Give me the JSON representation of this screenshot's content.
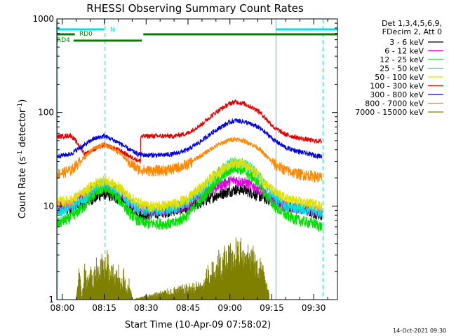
{
  "chart_data": {
    "type": "line",
    "title": "RHESSI Observing Summary Count Rates",
    "xlabel": "Start Time (10-Apr-09 07:58:02)",
    "ylabel_main": "Count Rate (s",
    "ylabel_sup1": "-1",
    "ylabel_mid": " detector",
    "ylabel_sup2": "-1",
    "ylabel_end": ")",
    "yscale": "log",
    "ylim": [
      1,
      1000
    ],
    "xlim_minutes": [
      478.03,
      578.5
    ],
    "x_ticks": [
      {
        "label": "08:00",
        "min": 480
      },
      {
        "label": "08:15",
        "min": 495
      },
      {
        "label": "08:30",
        "min": 510
      },
      {
        "label": "08:45",
        "min": 525
      },
      {
        "label": "09:00",
        "min": 540
      },
      {
        "label": "09:15",
        "min": 555
      },
      {
        "label": "09:30",
        "min": 570
      }
    ],
    "y_ticks": [
      {
        "label": "1",
        "value": 1
      },
      {
        "label": "10",
        "value": 10
      },
      {
        "label": "100",
        "value": 100
      },
      {
        "label": "1000",
        "value": 1000
      }
    ],
    "legend_header": [
      "Det 1,3,4,5,6,9,",
      "FDecim 2, Att 0"
    ],
    "legend_placement": "right",
    "series": [
      {
        "name": "3 - 6 keV",
        "color": "#000000",
        "x": [
          478,
          483,
          488,
          491,
          495,
          500,
          504,
          507,
          510,
          515,
          520,
          525,
          530,
          535,
          540,
          542,
          545,
          550,
          553,
          556,
          560,
          565,
          570,
          573
        ],
        "y": [
          9,
          9.5,
          11,
          12,
          13.5,
          12,
          10,
          8.5,
          8,
          8.5,
          9,
          9.5,
          11,
          13,
          14.5,
          15,
          15,
          13,
          12,
          11,
          10,
          9.5,
          8.5,
          8
        ]
      },
      {
        "name": "6 - 12 keV",
        "color": "#e000e0",
        "x": [
          478,
          483,
          488,
          491,
          495,
          500,
          504,
          507,
          510,
          515,
          520,
          525,
          530,
          535,
          540,
          542,
          545,
          550,
          553,
          556,
          560,
          565,
          570,
          573
        ],
        "y": [
          10,
          10.5,
          12.5,
          15,
          17,
          14,
          11,
          9.5,
          9,
          9,
          9.5,
          10.5,
          13,
          16,
          18.5,
          19,
          18,
          15.5,
          13,
          11.5,
          10,
          9.5,
          9,
          8.5
        ]
      },
      {
        "name": "12 - 25 keV",
        "color": "#00e000",
        "x": [
          478,
          483,
          488,
          491,
          495,
          500,
          504,
          507,
          510,
          515,
          520,
          525,
          530,
          535,
          540,
          542,
          545,
          550,
          553,
          556,
          560,
          565,
          570,
          573
        ],
        "y": [
          6.5,
          7.5,
          10,
          13,
          16,
          12,
          8.5,
          7,
          6.5,
          6.5,
          6.5,
          8,
          12,
          18,
          24,
          26,
          24,
          18,
          13,
          10,
          8,
          7,
          6.5,
          6
        ]
      },
      {
        "name": "25 - 50 keV",
        "color": "#00e0e0",
        "x": [
          478,
          483,
          488,
          491,
          495,
          500,
          504,
          507,
          510,
          515,
          520,
          525,
          530,
          535,
          540,
          542,
          545,
          550,
          553,
          556,
          560,
          565,
          570,
          573
        ],
        "y": [
          8.5,
          9.5,
          12,
          15.5,
          18,
          15,
          11,
          9.5,
          9,
          9,
          9.5,
          11,
          15,
          22,
          29,
          31,
          29,
          22,
          16,
          12.5,
          10,
          9.5,
          9,
          8.5
        ]
      },
      {
        "name": "50 - 100 keV",
        "color": "#e0e000",
        "x": [
          478,
          483,
          488,
          491,
          495,
          500,
          504,
          507,
          510,
          515,
          520,
          525,
          530,
          535,
          540,
          542,
          545,
          550,
          553,
          556,
          560,
          565,
          570,
          573
        ],
        "y": [
          11,
          11.5,
          14,
          17,
          19,
          16,
          12.5,
          11,
          10,
          10,
          10.5,
          12,
          16,
          22,
          28,
          30,
          28,
          22,
          17,
          14,
          12,
          11,
          10.5,
          10
        ]
      },
      {
        "name": "100 - 300 keV",
        "color": "#e00000",
        "x": [
          478,
          483,
          488,
          491,
          495,
          500,
          504,
          507,
          508,
          508.01,
          510,
          515,
          520,
          525,
          530,
          535,
          540,
          542,
          545,
          550,
          553,
          556,
          560,
          565,
          570,
          573
        ],
        "y": [
          55,
          57,
          36,
          40,
          45,
          40,
          34,
          31,
          30,
          55,
          56,
          56,
          56,
          60,
          75,
          100,
          125,
          130,
          125,
          105,
          85,
          68,
          58,
          53,
          50,
          49
        ]
      },
      {
        "name": "300 - 800 keV",
        "color": "#0000e0",
        "x": [
          478,
          483,
          488,
          491,
          495,
          500,
          504,
          507,
          510,
          515,
          520,
          525,
          530,
          535,
          540,
          542,
          545,
          550,
          553,
          556,
          560,
          565,
          570,
          573
        ],
        "y": [
          34,
          36,
          45,
          52,
          56,
          48,
          40,
          36,
          35,
          35,
          36,
          40,
          50,
          65,
          79,
          82,
          80,
          70,
          60,
          50,
          42,
          38,
          35,
          34
        ]
      },
      {
        "name": "800 - 7000 keV",
        "color": "#ff8800",
        "x": [
          478,
          483,
          488,
          491,
          495,
          500,
          504,
          507,
          510,
          515,
          520,
          525,
          530,
          535,
          540,
          542,
          545,
          550,
          553,
          556,
          560,
          565,
          570,
          573
        ],
        "y": [
          22,
          24,
          33,
          41,
          46,
          38,
          29,
          25,
          24,
          24,
          25,
          28,
          35,
          44,
          51,
          52,
          50,
          42,
          34,
          28,
          24,
          22,
          21,
          20
        ]
      },
      {
        "name": "7000 - 15000 keV",
        "color": "#808000",
        "x": [
          485,
          486,
          487,
          488,
          489,
          490,
          491,
          492,
          493,
          494,
          495,
          496,
          497,
          498,
          499,
          500,
          501,
          502,
          503,
          504,
          505,
          531,
          532,
          533,
          534,
          535,
          536,
          537,
          538,
          539,
          540,
          541,
          542,
          543,
          544,
          545,
          546,
          547,
          548,
          549,
          550,
          551,
          552,
          553,
          554
        ],
        "y": [
          1,
          2,
          1,
          2.3,
          1.5,
          2.3,
          1.4,
          2.6,
          2,
          3,
          2.3,
          3,
          2,
          2.6,
          1.7,
          2.3,
          1.4,
          2,
          1.2,
          1.6,
          1,
          1.5,
          2.2,
          1.6,
          2.6,
          2,
          3,
          2.3,
          3.4,
          2.6,
          4,
          3,
          4,
          3.4,
          4.6,
          3,
          4,
          3,
          3.4,
          2.6,
          2.3,
          2.6,
          2,
          1.6,
          1.3
        ]
      }
    ],
    "vertical_lines": [
      {
        "min": 478.2,
        "style": "solid",
        "color": "#00e0e0"
      },
      {
        "min": 495.3,
        "style": "dashed",
        "color": "#00e0e0"
      },
      {
        "min": 556.5,
        "style": "solid",
        "color": "#00e0e0"
      },
      {
        "min": 573.3,
        "style": "dashed",
        "color": "#00e0e0"
      }
    ],
    "status_bars": [
      {
        "label": "N",
        "color": "#00e0e0",
        "segments": [
          [
            478.03,
            495
          ],
          [
            556.5,
            578.5
          ]
        ],
        "level": 0
      },
      {
        "label": "RD0",
        "color": "#008000",
        "segments": [
          [
            478.03,
            484.5
          ],
          [
            509,
            578.5
          ]
        ],
        "level": 1
      },
      {
        "label": "RD4",
        "color": "#008000",
        "segments": [
          [
            484,
            508.5
          ]
        ],
        "level": 2
      }
    ],
    "footer_timestamp": "14-Oct-2021 09:30"
  }
}
